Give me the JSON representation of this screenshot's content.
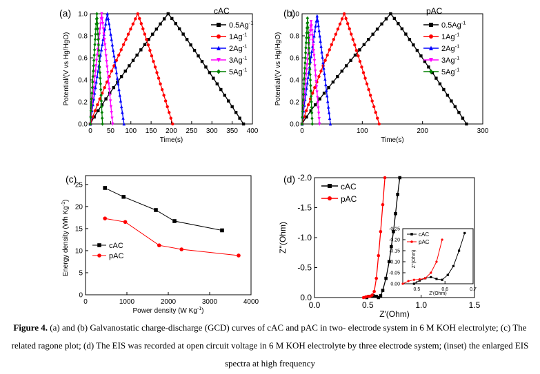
{
  "caption": {
    "label": "Figure 4.",
    "text": "(a) and (b) Galvanostatic charge-discharge (GCD) curves of cAC and pAC in two- electrode system in 6 M KOH electrolyte; (c) The related ragone plot; (d) The EIS was recorded at open circuit voltage in 6 M KOH electrolyte by three electrode system; (inset) the enlarged EIS spectra at high frequency"
  },
  "chart_data": [
    {
      "panel": "(a)",
      "type": "line",
      "title": "cAC",
      "xlabel": "Time(s)",
      "ylabel": "Potential/(V vs Hg/HgO)",
      "xlim": [
        0,
        400
      ],
      "ylim": [
        0.0,
        1.0
      ],
      "xticks": [
        0,
        50,
        100,
        150,
        200,
        250,
        300,
        350,
        400
      ],
      "yticks": [
        0.0,
        0.2,
        0.4,
        0.6,
        0.8,
        1.0
      ],
      "legend": "top-right",
      "series": [
        {
          "name": "0.5Ag",
          "sup": "-1",
          "color": "#000000",
          "marker": "square",
          "charge_time": 192,
          "total_time": 378
        },
        {
          "name": "1Ag",
          "sup": "-1",
          "color": "#ff0000",
          "marker": "circle",
          "charge_time": 117,
          "total_time": 203
        },
        {
          "name": "2Ag",
          "sup": "-1",
          "color": "#0000ff",
          "marker": "triangle",
          "charge_time": 42,
          "total_time": 83
        },
        {
          "name": "3Ag",
          "sup": "-1",
          "color": "#ff00ff",
          "marker": "triangle-down",
          "charge_time": 28,
          "total_time": 55
        },
        {
          "name": "5Ag",
          "sup": "-1",
          "color": "#008000",
          "marker": "diamond",
          "charge_time": 16,
          "total_time": 30
        }
      ]
    },
    {
      "panel": "(b)",
      "type": "line",
      "title": "pAC",
      "xlabel": "Time(s)",
      "ylabel": "Potential/(V vs Hg/HgO)",
      "xlim": [
        0,
        300
      ],
      "ylim": [
        0.0,
        1.0
      ],
      "xticks": [
        0,
        100,
        200,
        300
      ],
      "yticks": [
        0.0,
        0.2,
        0.4,
        0.6,
        0.8,
        1.0
      ],
      "legend": "top-right",
      "series": [
        {
          "name": "0.5Ag",
          "sup": "-1",
          "color": "#000000",
          "marker": "square",
          "charge_time": 147,
          "total_time": 273,
          "peak": 1.0
        },
        {
          "name": "1Ag",
          "sup": "-1",
          "color": "#ff0000",
          "marker": "circle",
          "charge_time": 70,
          "total_time": 128,
          "peak": 1.0
        },
        {
          "name": "2Ag",
          "sup": "-1",
          "color": "#0000ff",
          "marker": "triangle",
          "charge_time": 25,
          "total_time": 47,
          "peak": 0.98
        },
        {
          "name": "3Ag",
          "sup": "-1",
          "color": "#ff00ff",
          "marker": "triangle-down",
          "charge_time": 15,
          "total_time": 29,
          "peak": 0.93
        },
        {
          "name": "5Ag",
          "sup": "-1",
          "color": "#008000",
          "marker": "diamond",
          "charge_time": 9,
          "total_time": 17,
          "peak": 0.96
        }
      ]
    },
    {
      "panel": "(c)",
      "type": "line",
      "xlabel": "Power density (W Kg",
      "xlabel_sup": "-1",
      "xlabel_end": ")",
      "ylabel": "Energy density (Wh Kg",
      "ylabel_sup": "-1",
      "ylabel_end": ")",
      "xlim": [
        0,
        4000
      ],
      "ylim": [
        0,
        27
      ],
      "xticks": [
        0,
        1000,
        2000,
        3000,
        4000
      ],
      "yticks": [
        0,
        5,
        10,
        15,
        20,
        25
      ],
      "legend": "center-left",
      "series": [
        {
          "name": "cAC",
          "color": "#000000",
          "marker": "square",
          "x": [
            470,
            920,
            1700,
            2150,
            3300
          ],
          "y": [
            24.2,
            22.2,
            19.2,
            16.7,
            14.6
          ]
        },
        {
          "name": "pAC",
          "color": "#ff0000",
          "marker": "circle",
          "x": [
            470,
            960,
            1780,
            2320,
            3700
          ],
          "y": [
            17.3,
            16.5,
            11.2,
            10.3,
            8.9
          ]
        }
      ]
    },
    {
      "panel": "(d)",
      "type": "line",
      "xlabel": "Z'(Ohm)",
      "ylabel": "Z''(Ohm)",
      "xlim": [
        0.0,
        1.5
      ],
      "ylim": [
        0.0,
        -2.0
      ],
      "xticks": [
        0.0,
        0.5,
        1.0,
        1.5
      ],
      "xticklabels": [
        "0.0",
        "0.5",
        "1.0",
        "1.5"
      ],
      "yticks": [
        0.0,
        -0.5,
        -1.0,
        -1.5,
        -2.0
      ],
      "yticklabels": [
        "0.0",
        "-0.5",
        "-1.0",
        "-1.5",
        "-2.0"
      ],
      "legend": "top-left",
      "series": [
        {
          "name": "cAC",
          "color": "#000000",
          "marker": "square",
          "x": [
            0.49,
            0.52,
            0.55,
            0.58,
            0.6,
            0.62,
            0.64,
            0.67,
            0.7,
            0.72,
            0.74,
            0.76,
            0.78,
            0.8
          ],
          "y": [
            0.0,
            -0.02,
            -0.03,
            -0.02,
            0.0,
            -0.03,
            -0.12,
            -0.32,
            -0.6,
            -0.85,
            -1.1,
            -1.4,
            -1.72,
            -2.0
          ]
        },
        {
          "name": "pAC",
          "color": "#ff0000",
          "marker": "circle",
          "x": [
            0.46,
            0.48,
            0.5,
            0.52,
            0.54,
            0.56,
            0.58,
            0.6,
            0.62,
            0.64,
            0.66
          ],
          "y": [
            0.0,
            -0.01,
            -0.02,
            -0.02,
            -0.04,
            -0.1,
            -0.32,
            -0.7,
            -1.1,
            -1.55,
            -2.0
          ]
        }
      ],
      "inset": {
        "xlabel": "Z'(Ohm)",
        "ylabel": "Z''(Ohm)",
        "xlim": [
          0.45,
          0.7
        ],
        "ylim": [
          0.0,
          -0.25
        ],
        "xticks": [
          0.5,
          0.6,
          0.7
        ],
        "xticklabels": [
          "0.5",
          "0.6",
          "0.7"
        ],
        "yticks": [
          0.0,
          -0.05,
          -0.1,
          -0.15,
          -0.2,
          -0.25
        ],
        "yticklabels": [
          "0.00",
          "-0.05",
          "-0.10",
          "-0.15",
          "-0.20",
          "-0.25"
        ],
        "series": [
          {
            "name": "cAC",
            "color": "#000000",
            "marker": "square",
            "x": [
              0.49,
              0.51,
              0.53,
              0.55,
              0.57,
              0.59,
              0.61,
              0.63,
              0.65,
              0.67
            ],
            "y": [
              0.0,
              -0.015,
              -0.025,
              -0.03,
              -0.022,
              -0.018,
              -0.04,
              -0.08,
              -0.15,
              -0.23
            ]
          },
          {
            "name": "pAC",
            "color": "#ff0000",
            "marker": "circle",
            "x": [
              0.45,
              0.47,
              0.49,
              0.51,
              0.53,
              0.55,
              0.57,
              0.59
            ],
            "y": [
              0.0,
              -0.012,
              -0.018,
              -0.02,
              -0.025,
              -0.05,
              -0.1,
              -0.2
            ]
          }
        ]
      }
    }
  ]
}
